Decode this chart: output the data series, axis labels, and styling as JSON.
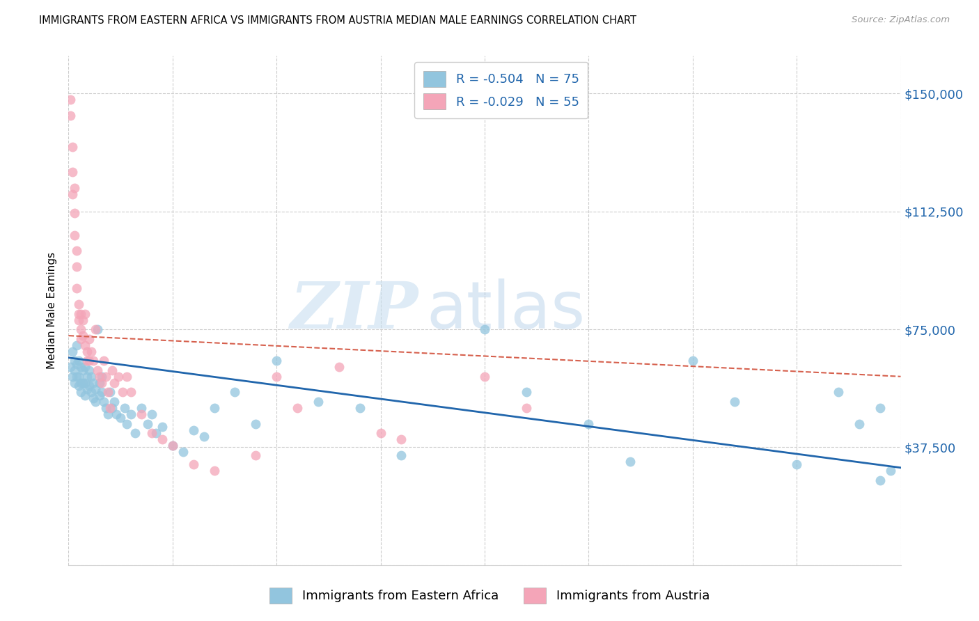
{
  "title": "IMMIGRANTS FROM EASTERN AFRICA VS IMMIGRANTS FROM AUSTRIA MEDIAN MALE EARNINGS CORRELATION CHART",
  "source": "Source: ZipAtlas.com",
  "ylabel": "Median Male Earnings",
  "yticks": [
    0,
    37500,
    75000,
    112500,
    150000
  ],
  "ytick_labels": [
    "",
    "$37,500",
    "$75,000",
    "$112,500",
    "$150,000"
  ],
  "xlim": [
    0.0,
    0.4
  ],
  "ylim": [
    0,
    162000
  ],
  "blue_R": -0.504,
  "blue_N": 75,
  "pink_R": -0.029,
  "pink_N": 55,
  "blue_color": "#92c5de",
  "pink_color": "#f4a5b8",
  "blue_line_color": "#2166ac",
  "pink_line_color": "#d6604d",
  "legend_label_blue": "Immigrants from Eastern Africa",
  "legend_label_pink": "Immigrants from Austria",
  "watermark_zip": "ZIP",
  "watermark_atlas": "atlas",
  "blue_trend_x": [
    0.0,
    0.4
  ],
  "blue_trend_y": [
    66000,
    31000
  ],
  "pink_trend_x": [
    0.0,
    0.4
  ],
  "pink_trend_y": [
    73000,
    60000
  ],
  "blue_scatter_x": [
    0.001,
    0.002,
    0.002,
    0.003,
    0.003,
    0.003,
    0.004,
    0.004,
    0.004,
    0.005,
    0.005,
    0.005,
    0.006,
    0.006,
    0.006,
    0.007,
    0.007,
    0.008,
    0.008,
    0.008,
    0.009,
    0.009,
    0.01,
    0.01,
    0.011,
    0.011,
    0.012,
    0.012,
    0.013,
    0.013,
    0.014,
    0.015,
    0.015,
    0.016,
    0.016,
    0.017,
    0.018,
    0.019,
    0.02,
    0.021,
    0.022,
    0.023,
    0.025,
    0.027,
    0.028,
    0.03,
    0.032,
    0.035,
    0.038,
    0.04,
    0.042,
    0.045,
    0.05,
    0.055,
    0.06,
    0.065,
    0.07,
    0.08,
    0.09,
    0.1,
    0.12,
    0.14,
    0.16,
    0.2,
    0.22,
    0.25,
    0.27,
    0.3,
    0.32,
    0.35,
    0.37,
    0.38,
    0.39,
    0.39,
    0.395
  ],
  "blue_scatter_y": [
    63000,
    68000,
    60000,
    65000,
    62000,
    58000,
    70000,
    64000,
    60000,
    65000,
    60000,
    57000,
    63000,
    58000,
    55000,
    62000,
    58000,
    63000,
    58000,
    54000,
    60000,
    56000,
    62000,
    57000,
    60000,
    55000,
    58000,
    53000,
    56000,
    52000,
    75000,
    58000,
    54000,
    60000,
    55000,
    52000,
    50000,
    48000,
    55000,
    50000,
    52000,
    48000,
    47000,
    50000,
    45000,
    48000,
    42000,
    50000,
    45000,
    48000,
    42000,
    44000,
    38000,
    36000,
    43000,
    41000,
    50000,
    55000,
    45000,
    65000,
    52000,
    50000,
    35000,
    75000,
    55000,
    45000,
    33000,
    65000,
    52000,
    32000,
    55000,
    45000,
    27000,
    50000,
    30000
  ],
  "pink_scatter_x": [
    0.001,
    0.001,
    0.002,
    0.002,
    0.002,
    0.003,
    0.003,
    0.003,
    0.004,
    0.004,
    0.004,
    0.005,
    0.005,
    0.005,
    0.006,
    0.006,
    0.006,
    0.007,
    0.007,
    0.008,
    0.008,
    0.009,
    0.009,
    0.01,
    0.01,
    0.011,
    0.012,
    0.013,
    0.014,
    0.015,
    0.016,
    0.017,
    0.018,
    0.019,
    0.02,
    0.021,
    0.022,
    0.024,
    0.026,
    0.028,
    0.03,
    0.035,
    0.04,
    0.045,
    0.05,
    0.06,
    0.07,
    0.09,
    0.1,
    0.11,
    0.13,
    0.15,
    0.16,
    0.2,
    0.22
  ],
  "pink_scatter_y": [
    148000,
    143000,
    133000,
    125000,
    118000,
    120000,
    112000,
    105000,
    95000,
    100000,
    88000,
    83000,
    80000,
    78000,
    80000,
    75000,
    72000,
    78000,
    73000,
    80000,
    70000,
    68000,
    65000,
    72000,
    65000,
    68000,
    65000,
    75000,
    62000,
    60000,
    58000,
    65000,
    60000,
    55000,
    50000,
    62000,
    58000,
    60000,
    55000,
    60000,
    55000,
    48000,
    42000,
    40000,
    38000,
    32000,
    30000,
    35000,
    60000,
    50000,
    63000,
    42000,
    40000,
    60000,
    50000
  ]
}
